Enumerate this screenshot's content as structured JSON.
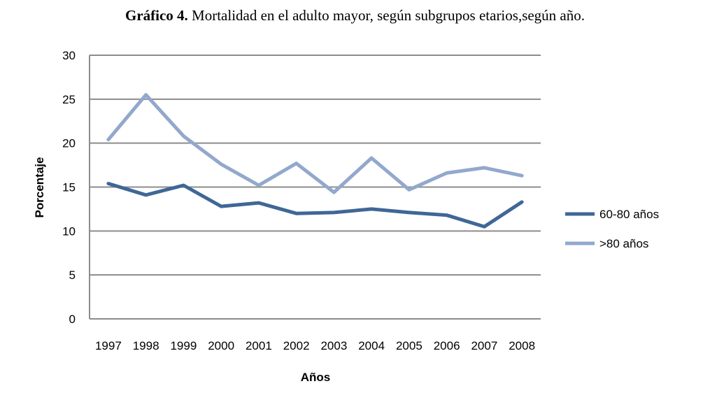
{
  "title": {
    "bold": "Gráfico 4.",
    "rest": " Mortalidad en el adulto mayor, según subgrupos etarios,según año."
  },
  "chart_data": {
    "type": "line",
    "x": [
      "1997",
      "1998",
      "1999",
      "2000",
      "2001",
      "2002",
      "2003",
      "2004",
      "2005",
      "2006",
      "2007",
      "2008"
    ],
    "xlabel": "Años",
    "ylabel": "Porcentaje",
    "ylim": [
      0,
      30
    ],
    "yticks": [
      "0",
      "5",
      "10",
      "15",
      "20",
      "25",
      "30"
    ],
    "grid": true,
    "legend_position": "right",
    "series": [
      {
        "name": "60-80 años",
        "color": "#3f6797",
        "values": [
          15.4,
          14.1,
          15.2,
          12.8,
          13.2,
          12.0,
          12.1,
          12.5,
          12.1,
          11.8,
          10.5,
          13.3
        ]
      },
      {
        "name": ">80 años",
        "color": "#92a8cc",
        "values": [
          20.4,
          25.5,
          20.8,
          17.6,
          15.2,
          17.7,
          14.4,
          18.3,
          14.7,
          16.6,
          17.2,
          16.3
        ]
      }
    ]
  }
}
